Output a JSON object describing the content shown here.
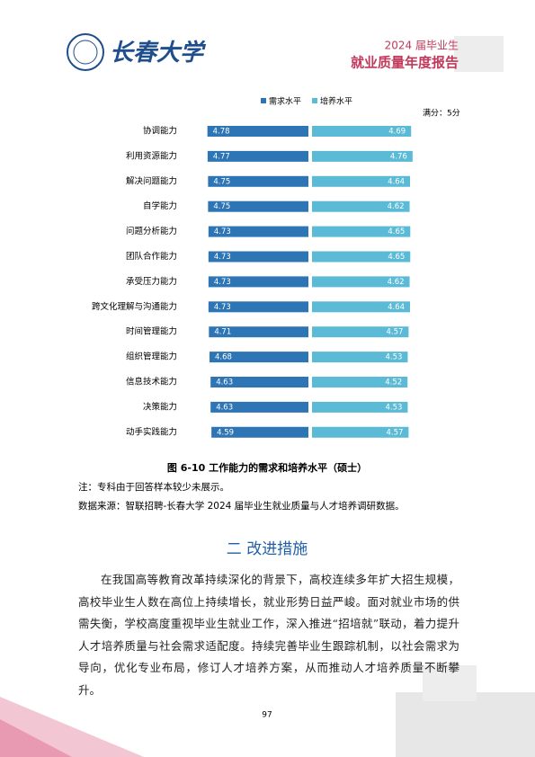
{
  "header": {
    "school": "长春大学",
    "report_year": "2024 届毕业生",
    "report_title": "就业质量年度报告"
  },
  "chart_data": {
    "type": "butterfly-bar",
    "annotation": "满分：5分",
    "categories": [
      "协调能力",
      "利用资源能力",
      "解决问题能力",
      "自学能力",
      "问题分析能力",
      "团队合作能力",
      "承受压力能力",
      "跨文化理解与沟通能力",
      "时间管理能力",
      "组织管理能力",
      "信息技术能力",
      "决策能力",
      "动手实践能力"
    ],
    "series": [
      {
        "name": "需求水平",
        "color": "#2e75b6",
        "values": [
          4.78,
          4.77,
          4.75,
          4.75,
          4.73,
          4.73,
          4.73,
          4.73,
          4.71,
          4.68,
          4.63,
          4.63,
          4.59
        ]
      },
      {
        "name": "培养水平",
        "color": "#5bbad5",
        "values": [
          4.69,
          4.76,
          4.64,
          4.62,
          4.65,
          4.65,
          4.62,
          4.64,
          4.57,
          4.53,
          4.52,
          4.53,
          4.57
        ]
      }
    ]
  },
  "caption": "图 6-10  工作能力的需求和培养水平（硕士）",
  "notes": [
    "注：专科由于回答样本较少未展示。",
    "数据来源：智联招聘-长春大学 2024 届毕业生就业质量与人才培养调研数据。"
  ],
  "section": {
    "heading": "二  改进措施",
    "paragraph": "在我国高等教育改革持续深化的背景下，高校连续多年扩大招生规模，高校毕业生人数在高位上持续增长，就业形势日益严峻。面对就业市场的供需失衡，学校高度重视毕业生就业工作，深入推进“招培就”联动，着力提升人才培养质量与社会需求适配度。持续完善毕业生跟踪机制，以社会需求为导向，优化专业布局，修订人才培养方案，从而推动人才培养质量不断攀升。"
  },
  "page_number": "97"
}
